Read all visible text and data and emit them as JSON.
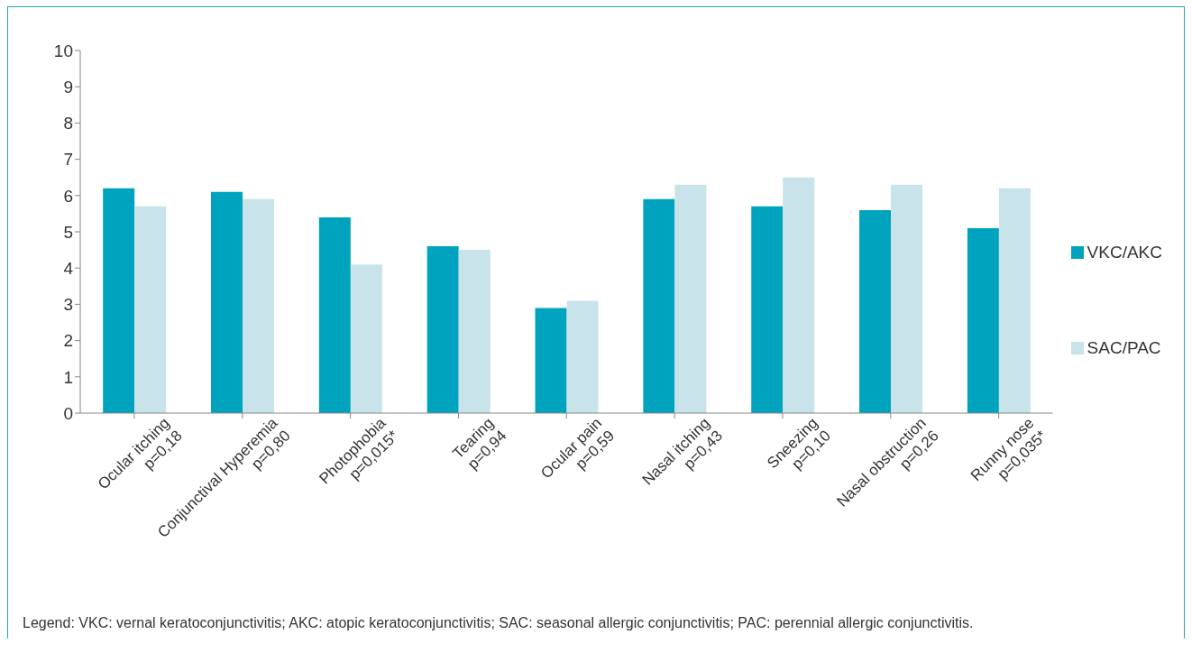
{
  "chart_data": {
    "type": "bar",
    "categories": [
      "Ocular itching\np=0,18",
      "Conjunctival Hyperemia\np=0,80",
      "Photophobia\np=0,015*",
      "Tearing\np=0,94",
      "Ocular pain\np=0,59",
      "Nasal itching\np=0,43",
      "Sneezing\np=0,10",
      "Nasal obstruction\np=0,26",
      "Runny nose\np=0,035*"
    ],
    "series": [
      {
        "name": "VKC/AKC",
        "color": "#00a3bd",
        "values": [
          6.2,
          6.1,
          5.4,
          4.6,
          2.9,
          5.9,
          5.7,
          5.6,
          5.1
        ]
      },
      {
        "name": "SAC/PAC",
        "color": "#c8e4ea",
        "values": [
          5.7,
          5.9,
          4.1,
          4.5,
          3.1,
          6.3,
          6.5,
          6.3,
          6.2
        ]
      }
    ],
    "ylim": [
      0,
      10
    ],
    "yticks": [
      0,
      1,
      2,
      3,
      4,
      5,
      6,
      7,
      8,
      9,
      10
    ],
    "grid": false,
    "legend": "right",
    "annotations": [
      "Legend: VKC: vernal keratoconjunctivitis; AKC: atopic keratoconjunctivitis; SAC: seasonal allergic conjunctivitis; PAC: perennial allergic conjunctivitis."
    ]
  }
}
